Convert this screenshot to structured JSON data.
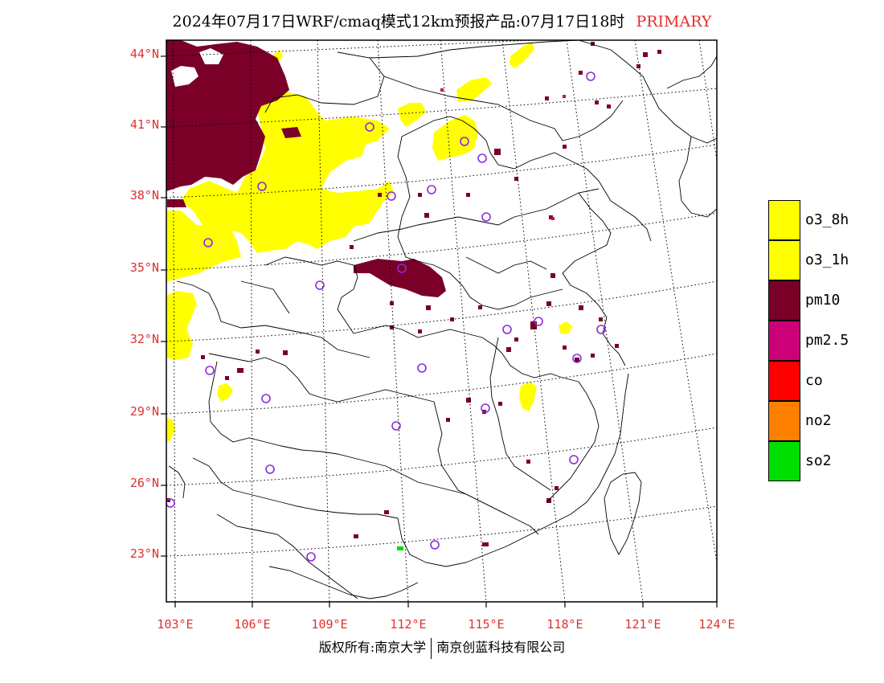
{
  "header": {
    "title": "2024年07月17日WRF/cmaq模式12km预报产品:07月17日18时",
    "variable": "PRIMARY"
  },
  "map": {
    "lat_labels": [
      "44°N",
      "41°N",
      "38°N",
      "35°N",
      "32°N",
      "29°N",
      "26°N",
      "23°N"
    ],
    "lon_labels": [
      "103°E",
      "106°E",
      "109°E",
      "112°E",
      "115°E",
      "118°E",
      "121°E",
      "124°E"
    ],
    "colors": {
      "o3_8h": "#ffff00",
      "o3_1h": "#ffff00",
      "pm10": "#7a0028",
      "pm25": "#cc0077",
      "co": "#ff0000",
      "no2": "#ff7f00",
      "so2": "#00dd00",
      "station": "#8a2be2"
    }
  },
  "legend": {
    "items": [
      {
        "label": "o3_8h",
        "color": "#ffff00"
      },
      {
        "label": "o3_1h",
        "color": "#ffff00"
      },
      {
        "label": "pm10",
        "color": "#7a0028"
      },
      {
        "label": "pm2.5",
        "color": "#cc0077"
      },
      {
        "label": "co",
        "color": "#ff0000"
      },
      {
        "label": "no2",
        "color": "#ff7f00"
      },
      {
        "label": "so2",
        "color": "#00dd00"
      }
    ]
  },
  "footer": {
    "left": "版权所有:南京大学",
    "right": "南京创蓝科技有限公司"
  }
}
